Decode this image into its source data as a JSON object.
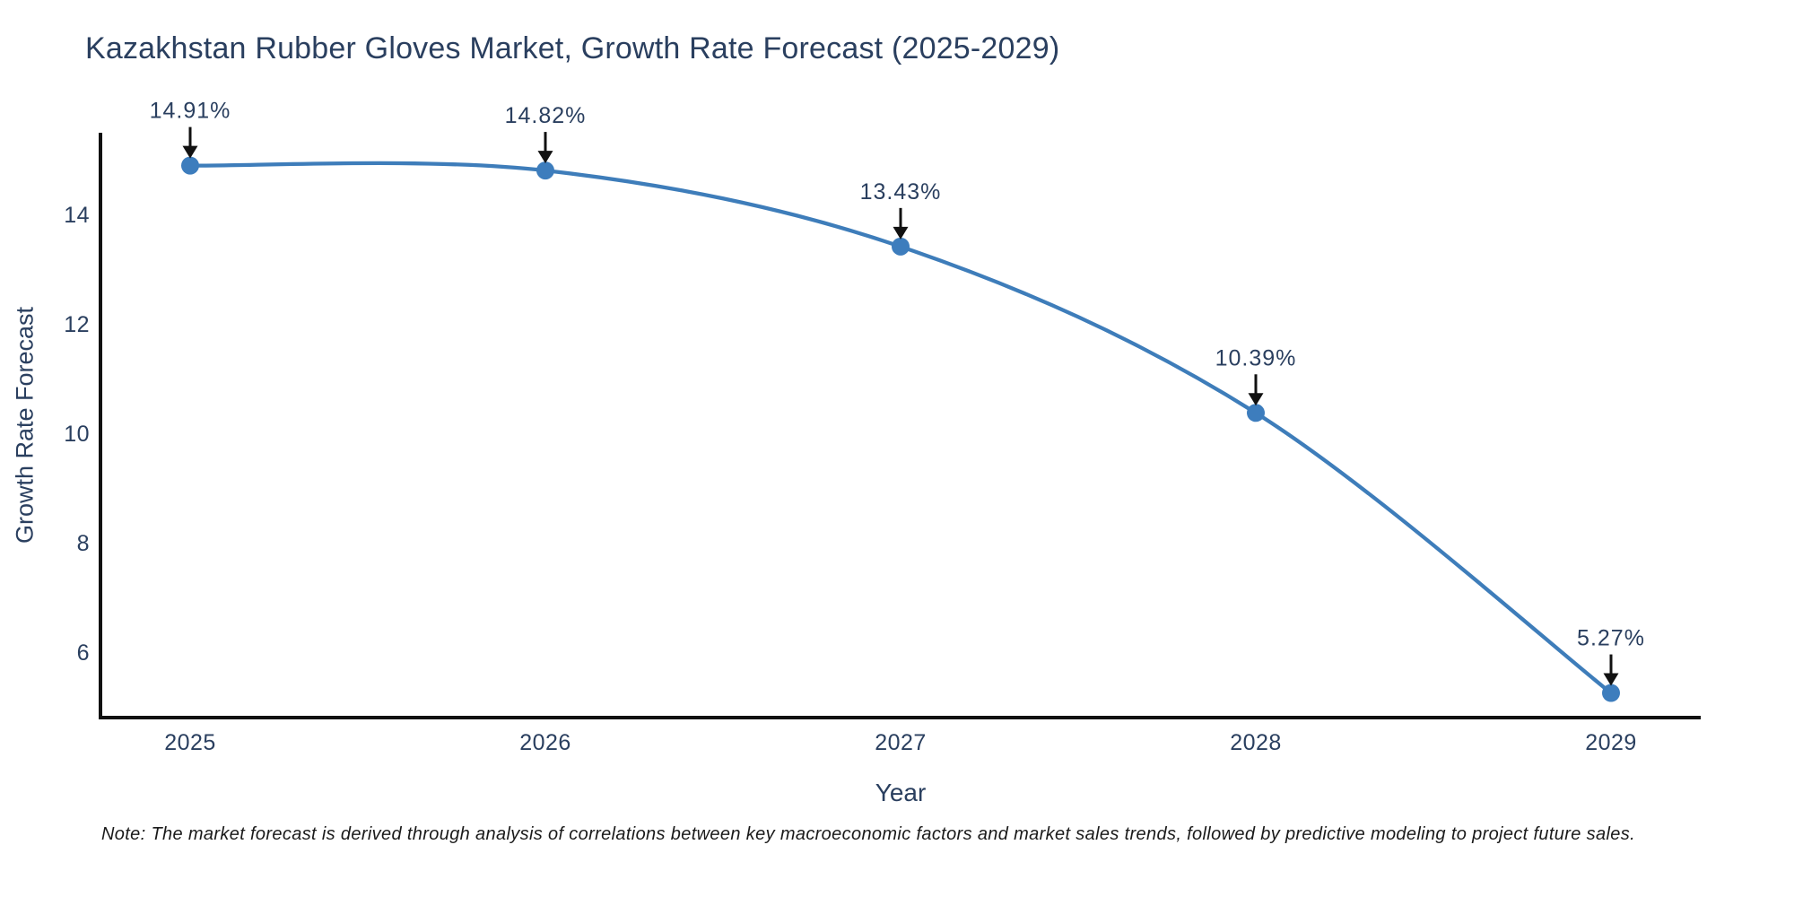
{
  "note": "Note: The market forecast is derived through analysis of correlations between key macroeconomic factors and market sales trends, followed by predictive modeling to project future sales.",
  "chart_data": {
    "type": "line",
    "title": "Kazakhstan Rubber Gloves Market, Growth Rate Forecast (2025-2029)",
    "xlabel": "Year",
    "ylabel": "Growth Rate Forecast",
    "categories": [
      "2025",
      "2026",
      "2027",
      "2028",
      "2029"
    ],
    "series": [
      {
        "name": "Growth Rate Forecast",
        "values": [
          14.91,
          14.82,
          13.43,
          10.39,
          5.27
        ]
      }
    ],
    "point_labels": [
      "14.91%",
      "14.82%",
      "13.43%",
      "10.39%",
      "5.27%"
    ],
    "y_ticks": [
      6,
      8,
      10,
      12,
      14
    ],
    "ylim": [
      4.82,
      15.51
    ],
    "line_shape": "spline",
    "grid": false,
    "legend": "none",
    "annotations_have_arrows": true,
    "colors": {
      "line": "#3e7dba",
      "marker": "#3d7dbd",
      "text": "#2a3f5f",
      "axis": "#111111",
      "arrow": "#111111",
      "note_text": "#1a1a1a",
      "background": "#ffffff"
    }
  }
}
